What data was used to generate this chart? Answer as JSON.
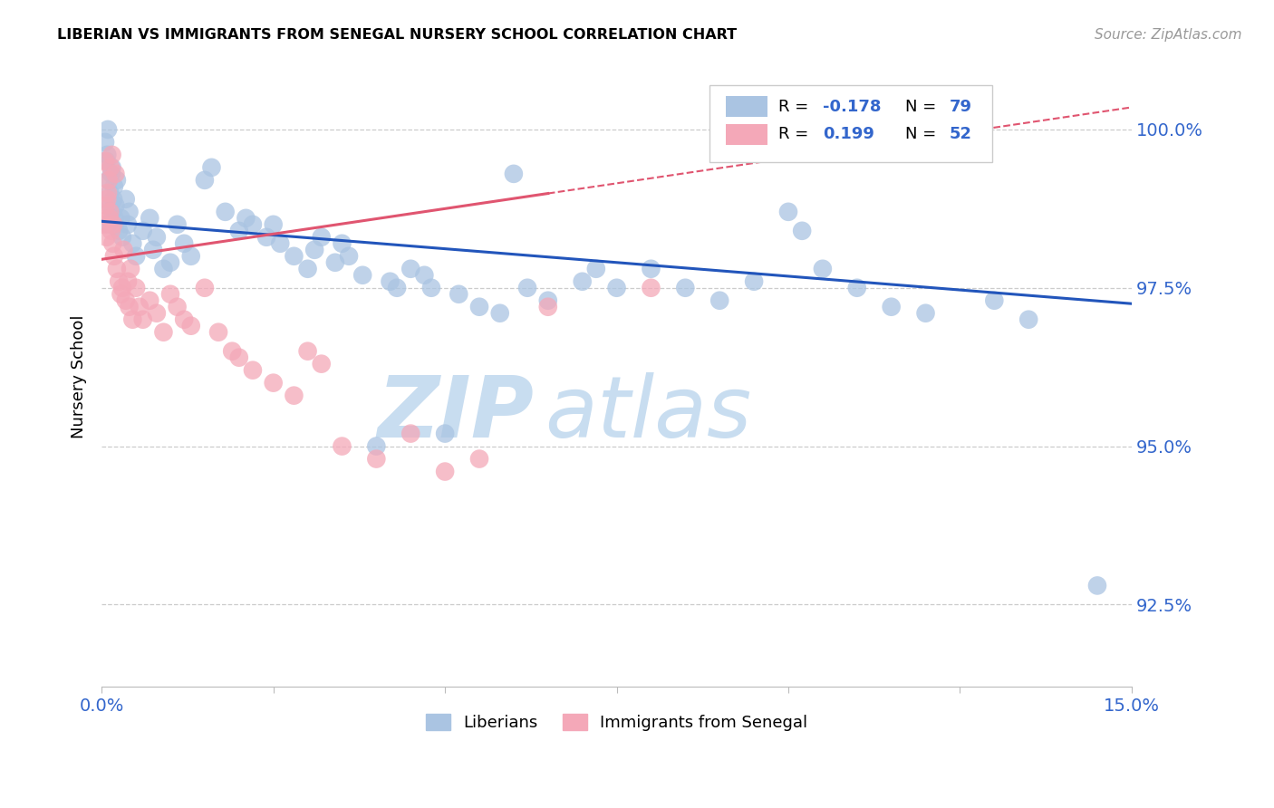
{
  "title": "LIBERIAN VS IMMIGRANTS FROM SENEGAL NURSERY SCHOOL CORRELATION CHART",
  "source": "Source: ZipAtlas.com",
  "ylabel": "Nursery School",
  "ytick_labels": [
    "92.5%",
    "95.0%",
    "97.5%",
    "100.0%"
  ],
  "ytick_values": [
    92.5,
    95.0,
    97.5,
    100.0
  ],
  "xmin": 0.0,
  "xmax": 15.0,
  "ymin": 91.2,
  "ymax": 101.0,
  "legend_blue_label": "Liberians",
  "legend_pink_label": "Immigrants from Senegal",
  "r_blue": "-0.178",
  "n_blue": "79",
  "r_pink": "0.199",
  "n_pink": "52",
  "blue_color": "#aac4e2",
  "pink_color": "#f4a8b8",
  "line_blue": "#2255bb",
  "line_pink": "#e05570",
  "watermark_zip_color": "#c8ddf0",
  "watermark_atlas_color": "#c8ddf0",
  "blue_line_x0": 0.0,
  "blue_line_y0": 98.55,
  "blue_line_x1": 15.0,
  "blue_line_y1": 97.25,
  "pink_line_x0": 0.0,
  "pink_line_y0": 97.95,
  "pink_line_x1": 15.0,
  "pink_line_y1": 100.35,
  "pink_solid_end": 6.5,
  "blue_pts_x": [
    0.05,
    0.07,
    0.08,
    0.09,
    0.1,
    0.1,
    0.12,
    0.13,
    0.14,
    0.15,
    0.16,
    0.17,
    0.18,
    0.19,
    0.2,
    0.22,
    0.25,
    0.28,
    0.3,
    0.35,
    0.38,
    0.4,
    0.45,
    0.5,
    0.6,
    0.7,
    0.75,
    0.8,
    0.9,
    1.0,
    1.1,
    1.2,
    1.3,
    1.5,
    1.6,
    1.8,
    2.0,
    2.1,
    2.2,
    2.4,
    2.5,
    2.6,
    2.8,
    3.0,
    3.1,
    3.2,
    3.4,
    3.5,
    3.6,
    3.8,
    4.0,
    4.2,
    4.3,
    4.5,
    4.7,
    4.8,
    5.0,
    5.2,
    5.5,
    5.8,
    6.0,
    6.2,
    6.5,
    7.0,
    7.2,
    7.5,
    8.0,
    8.5,
    9.0,
    9.5,
    10.0,
    10.2,
    10.5,
    11.0,
    11.5,
    12.0,
    13.0,
    13.5,
    14.5
  ],
  "blue_pts_y": [
    99.8,
    99.5,
    99.6,
    100.0,
    99.2,
    98.5,
    99.0,
    98.8,
    99.3,
    99.4,
    98.7,
    98.9,
    99.1,
    98.6,
    98.8,
    99.2,
    98.4,
    98.6,
    98.3,
    98.9,
    98.5,
    98.7,
    98.2,
    98.0,
    98.4,
    98.6,
    98.1,
    98.3,
    97.8,
    97.9,
    98.5,
    98.2,
    98.0,
    99.2,
    99.4,
    98.7,
    98.4,
    98.6,
    98.5,
    98.3,
    98.5,
    98.2,
    98.0,
    97.8,
    98.1,
    98.3,
    97.9,
    98.2,
    98.0,
    97.7,
    95.0,
    97.6,
    97.5,
    97.8,
    97.7,
    97.5,
    95.2,
    97.4,
    97.2,
    97.1,
    99.3,
    97.5,
    97.3,
    97.6,
    97.8,
    97.5,
    97.8,
    97.5,
    97.3,
    97.6,
    98.7,
    98.4,
    97.8,
    97.5,
    97.2,
    97.1,
    97.3,
    97.0,
    92.8
  ],
  "pink_pts_x": [
    0.03,
    0.05,
    0.06,
    0.07,
    0.08,
    0.09,
    0.1,
    0.11,
    0.12,
    0.13,
    0.14,
    0.15,
    0.16,
    0.17,
    0.18,
    0.2,
    0.22,
    0.25,
    0.28,
    0.3,
    0.32,
    0.35,
    0.38,
    0.4,
    0.42,
    0.45,
    0.5,
    0.55,
    0.6,
    0.7,
    0.8,
    0.9,
    1.0,
    1.1,
    1.2,
    1.3,
    1.5,
    1.7,
    1.9,
    2.0,
    2.2,
    2.5,
    2.8,
    3.0,
    3.2,
    3.5,
    4.0,
    4.5,
    5.0,
    5.5,
    6.5,
    8.0
  ],
  "pink_pts_y": [
    98.5,
    99.5,
    98.8,
    98.3,
    98.9,
    99.0,
    99.2,
    98.6,
    98.7,
    99.4,
    98.4,
    99.6,
    98.2,
    98.5,
    98.0,
    99.3,
    97.8,
    97.6,
    97.4,
    97.5,
    98.1,
    97.3,
    97.6,
    97.2,
    97.8,
    97.0,
    97.5,
    97.2,
    97.0,
    97.3,
    97.1,
    96.8,
    97.4,
    97.2,
    97.0,
    96.9,
    97.5,
    96.8,
    96.5,
    96.4,
    96.2,
    96.0,
    95.8,
    96.5,
    96.3,
    95.0,
    94.8,
    95.2,
    94.6,
    94.8,
    97.2,
    97.5
  ]
}
